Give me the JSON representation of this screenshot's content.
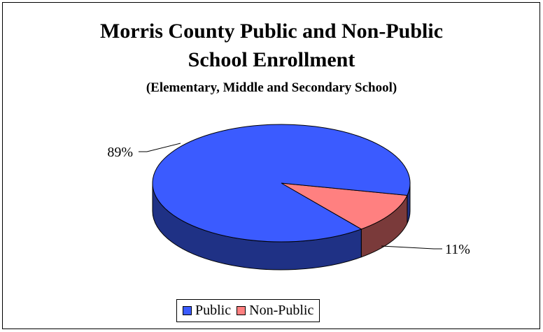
{
  "chart_data": {
    "type": "pie",
    "title": "Morris County Public and Non-Public School Enrollment",
    "title_lines": [
      "Morris County Public and Non-Public",
      "School Enrollment"
    ],
    "subtitle": "(Elementary, Middle and Secondary School)",
    "slices": [
      {
        "label": "Public",
        "value": 89,
        "value_label": "89%",
        "color": "#3b5bff",
        "side_color": "#1f3185"
      },
      {
        "label": "Non-Public",
        "value": 11,
        "value_label": "11%",
        "color": "#ff8080",
        "side_color": "#7a3a3a"
      }
    ],
    "legend_position": "bottom",
    "style": "3d"
  }
}
